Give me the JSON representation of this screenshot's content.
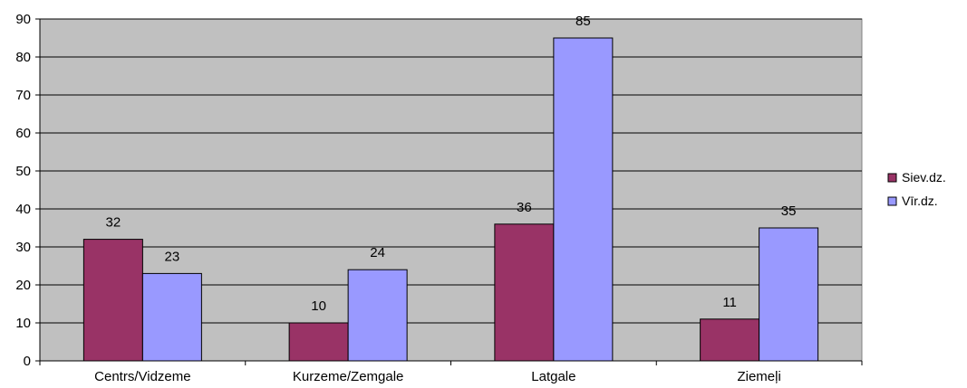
{
  "chart_data": {
    "type": "bar",
    "categories": [
      "Centrs/Vidzeme",
      "Kurzeme/Zemgale",
      "Latgale",
      "Ziemeļi"
    ],
    "series": [
      {
        "name": "Siev.dz.",
        "values": [
          32,
          10,
          36,
          11
        ],
        "color": "#993366"
      },
      {
        "name": "Vīr.dz.",
        "values": [
          23,
          24,
          85,
          35
        ],
        "color": "#9999ff"
      }
    ],
    "ylim": [
      0,
      90
    ],
    "yticks": [
      0,
      10,
      20,
      30,
      40,
      50,
      60,
      70,
      80,
      90
    ],
    "grid": true,
    "plot_background": "#c0c0c0",
    "legend_position": "right",
    "data_labels": true
  }
}
